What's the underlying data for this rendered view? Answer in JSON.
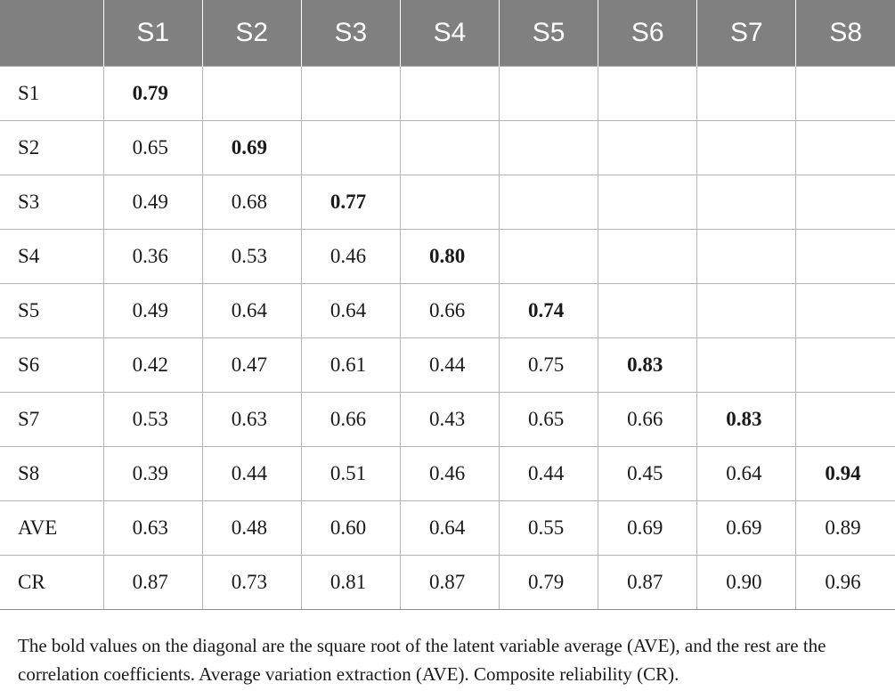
{
  "table": {
    "header": [
      "",
      "S1",
      "S2",
      "S3",
      "S4",
      "S5",
      "S6",
      "S7",
      "S8"
    ],
    "rows": [
      {
        "label": "S1",
        "cells": [
          "0.79",
          "",
          "",
          "",
          "",
          "",
          "",
          ""
        ],
        "diag": 0
      },
      {
        "label": "S2",
        "cells": [
          "0.65",
          "0.69",
          "",
          "",
          "",
          "",
          "",
          ""
        ],
        "diag": 1
      },
      {
        "label": "S3",
        "cells": [
          "0.49",
          "0.68",
          "0.77",
          "",
          "",
          "",
          "",
          ""
        ],
        "diag": 2
      },
      {
        "label": "S4",
        "cells": [
          "0.36",
          "0.53",
          "0.46",
          "0.80",
          "",
          "",
          "",
          ""
        ],
        "diag": 3
      },
      {
        "label": "S5",
        "cells": [
          "0.49",
          "0.64",
          "0.64",
          "0.66",
          "0.74",
          "",
          "",
          ""
        ],
        "diag": 4
      },
      {
        "label": "S6",
        "cells": [
          "0.42",
          "0.47",
          "0.61",
          "0.44",
          "0.75",
          "0.83",
          "",
          ""
        ],
        "diag": 5
      },
      {
        "label": "S7",
        "cells": [
          "0.53",
          "0.63",
          "0.66",
          "0.43",
          "0.65",
          "0.66",
          "0.83",
          ""
        ],
        "diag": 6
      },
      {
        "label": "S8",
        "cells": [
          "0.39",
          "0.44",
          "0.51",
          "0.46",
          "0.44",
          "0.45",
          "0.64",
          "0.94"
        ],
        "diag": 7
      },
      {
        "label": "AVE",
        "cells": [
          "0.63",
          "0.48",
          "0.60",
          "0.64",
          "0.55",
          "0.69",
          "0.69",
          "0.89"
        ],
        "diag": -1
      },
      {
        "label": "CR",
        "cells": [
          "0.87",
          "0.73",
          "0.81",
          "0.87",
          "0.79",
          "0.87",
          "0.90",
          "0.96"
        ],
        "diag": -1
      }
    ]
  },
  "footnote": "The bold values on the diagonal are the square root of the latent variable average (AVE), and the rest are the correlation coefficients. Average variation extraction (AVE). Composite reliability (CR)."
}
